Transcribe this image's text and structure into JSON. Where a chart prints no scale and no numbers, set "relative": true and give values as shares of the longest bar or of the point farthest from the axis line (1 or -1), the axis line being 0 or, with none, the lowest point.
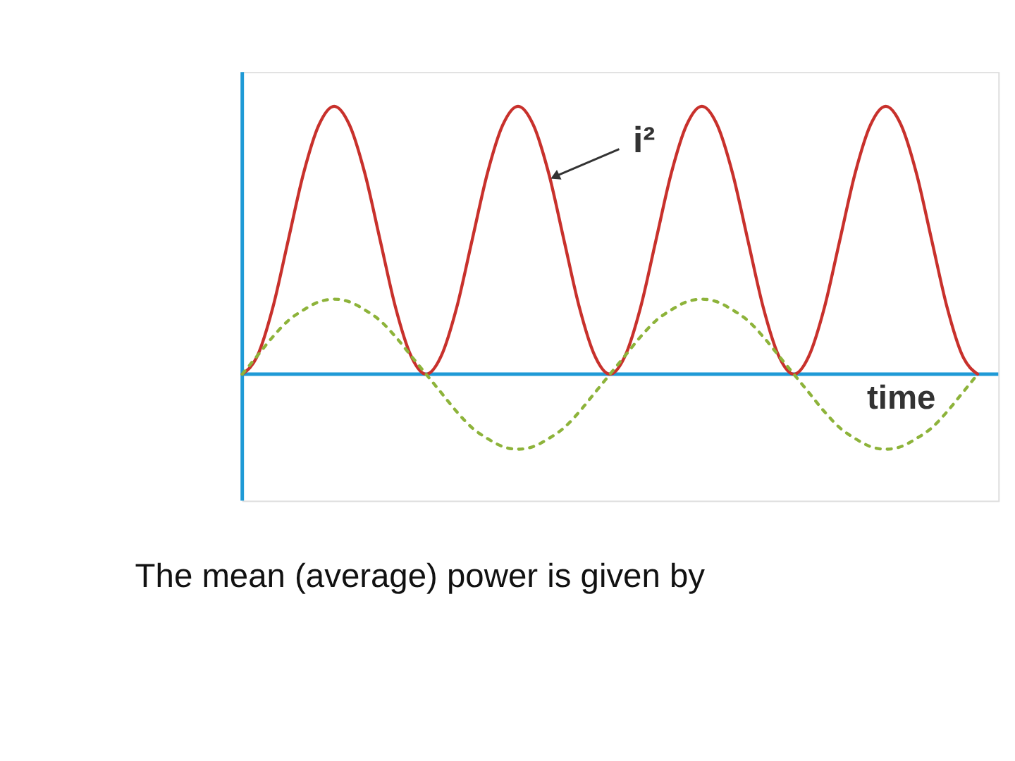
{
  "chart_data": {
    "type": "line",
    "relative": true,
    "xlabel": "time",
    "categories": [
      null,
      null,
      null,
      null,
      null,
      null,
      null,
      null,
      null,
      null,
      null,
      null,
      null,
      null,
      null,
      null,
      null,
      null,
      null,
      null,
      null,
      null,
      null,
      null,
      null,
      null,
      null,
      null,
      null,
      null,
      null,
      null,
      null,
      null,
      null,
      null,
      null,
      null,
      null,
      null,
      null,
      null,
      null,
      null,
      null,
      null,
      null,
      null,
      null
    ],
    "series": [
      {
        "name": "i²",
        "color": "#c8312c",
        "line_style": "solid",
        "values": [
          0,
          0.07,
          0.25,
          0.5,
          0.75,
          0.93,
          1,
          0.93,
          0.75,
          0.5,
          0.25,
          0.07,
          0,
          0.07,
          0.25,
          0.5,
          0.75,
          0.93,
          1,
          0.93,
          0.75,
          0.5,
          0.25,
          0.07,
          0,
          0.07,
          0.25,
          0.5,
          0.75,
          0.93,
          1,
          0.93,
          0.75,
          0.5,
          0.25,
          0.07,
          0,
          0.07,
          0.25,
          0.5,
          0.75,
          0.93,
          1,
          0.93,
          0.75,
          0.5,
          0.25,
          0.07,
          0
        ]
      },
      {
        "color": "#8db33a",
        "line_style": "dotted",
        "values": [
          0,
          0.07,
          0.14,
          0.2,
          0.24,
          0.27,
          0.28,
          0.27,
          0.24,
          0.2,
          0.14,
          0.07,
          0,
          -0.07,
          -0.14,
          -0.2,
          -0.24,
          -0.27,
          -0.28,
          -0.27,
          -0.24,
          -0.2,
          -0.14,
          -0.07,
          0,
          0.07,
          0.14,
          0.2,
          0.24,
          0.27,
          0.28,
          0.27,
          0.24,
          0.2,
          0.14,
          0.07,
          0,
          -0.07,
          -0.14,
          -0.2,
          -0.24,
          -0.27,
          -0.28,
          -0.27,
          -0.24,
          -0.2,
          -0.14,
          -0.07,
          0
        ]
      }
    ],
    "annotations": [
      "The mean (average) power is given by"
    ],
    "ref_lines": [
      {
        "axis": "y",
        "value": 0,
        "color": "#1f9ad6"
      }
    ],
    "grid": false
  }
}
